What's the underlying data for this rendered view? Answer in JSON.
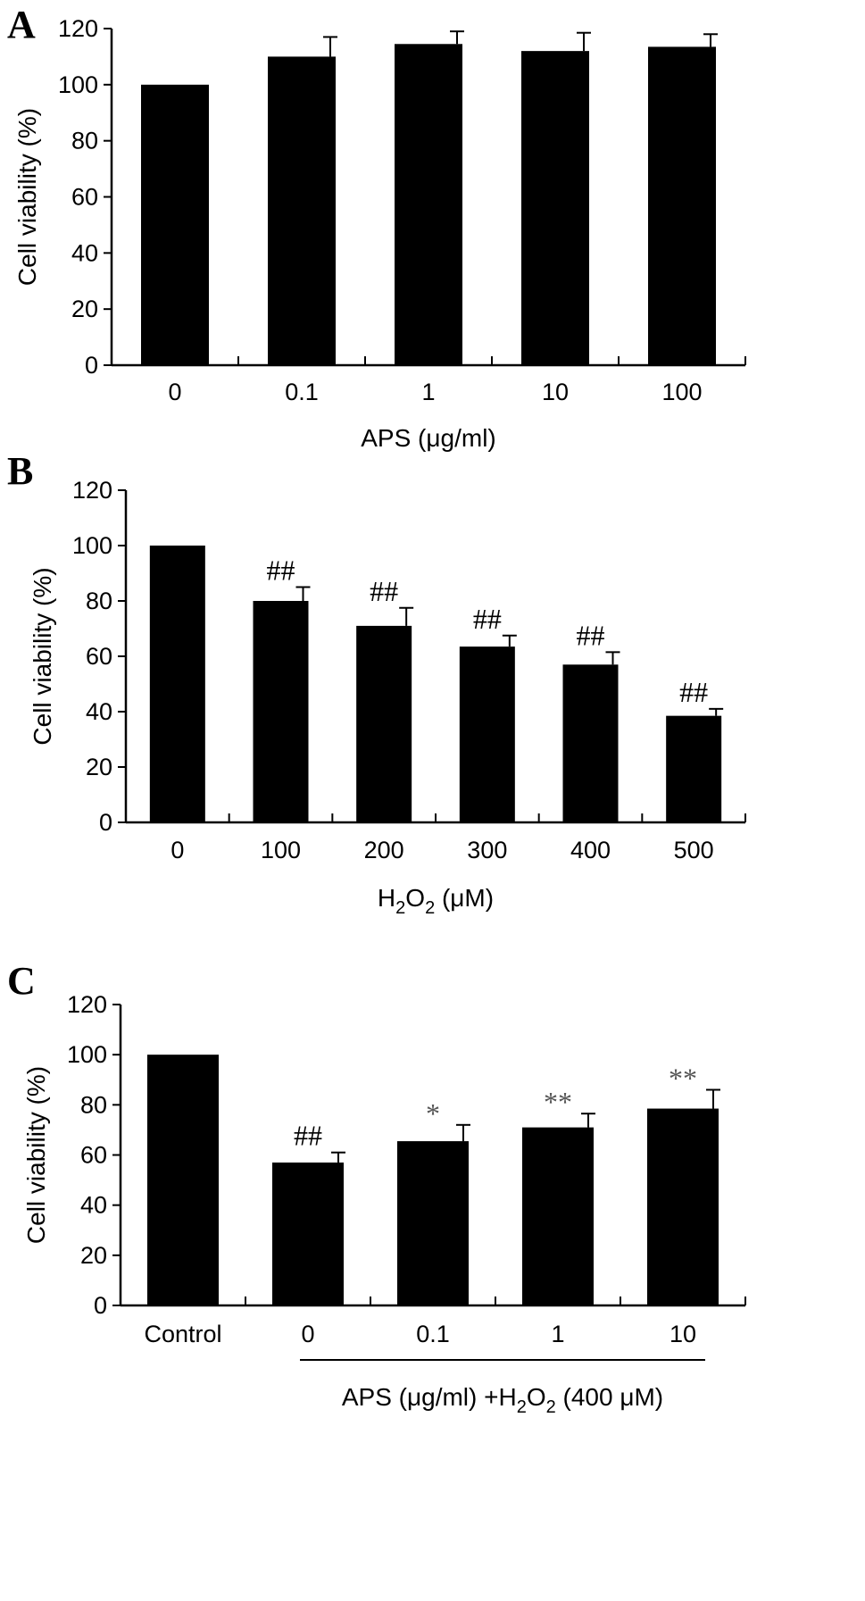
{
  "chart_data": [
    {
      "type": "bar",
      "panel": "A",
      "categories": [
        "0",
        "0.1",
        "1",
        "10",
        "100"
      ],
      "values": [
        100,
        110,
        114.5,
        112,
        113.5
      ],
      "errors": [
        0,
        7,
        4.5,
        6.5,
        4.5
      ],
      "annotations": [
        "",
        "",
        "",
        "",
        ""
      ],
      "yticks": [
        "0",
        "20",
        "40",
        "60",
        "80",
        "100",
        "120"
      ],
      "ylim": [
        0,
        120
      ],
      "ylabel": "Cell viability (%)",
      "xlabel": {
        "main": "APS (μg/ml)"
      }
    },
    {
      "type": "bar",
      "panel": "B",
      "categories": [
        "0",
        "100",
        "200",
        "300",
        "400",
        "500"
      ],
      "values": [
        100,
        80,
        71,
        63.5,
        57,
        38.5
      ],
      "errors": [
        0,
        5,
        6.5,
        4,
        4.5,
        2.5
      ],
      "annotations": [
        "",
        "##",
        "##",
        "##",
        "##",
        "##"
      ],
      "yticks": [
        "0",
        "20",
        "40",
        "60",
        "80",
        "100",
        "120"
      ],
      "ylim": [
        0,
        120
      ],
      "ylabel": "Cell viability (%)",
      "xlabel": {
        "pre": "H",
        "sub1": "2",
        "mid": "O",
        "sub2": "2",
        "post": " (μM)"
      }
    },
    {
      "type": "bar",
      "panel": "C",
      "categories": [
        "Control",
        "0",
        "0.1",
        "1",
        "10"
      ],
      "values": [
        100,
        57,
        65.5,
        71,
        78.5
      ],
      "errors": [
        0,
        4,
        6.5,
        5.5,
        7.5
      ],
      "annotations": [
        "",
        "##",
        "*",
        "**",
        "**"
      ],
      "yticks": [
        "0",
        "20",
        "40",
        "60",
        "80",
        "100",
        "120"
      ],
      "ylim": [
        0,
        120
      ],
      "ylabel": "Cell viability (%)",
      "xlabel": {
        "pre": "APS (μg/ml) +H",
        "sub1": "2",
        "mid": "O",
        "sub2": "2",
        "post": " (400 μM)"
      }
    }
  ]
}
